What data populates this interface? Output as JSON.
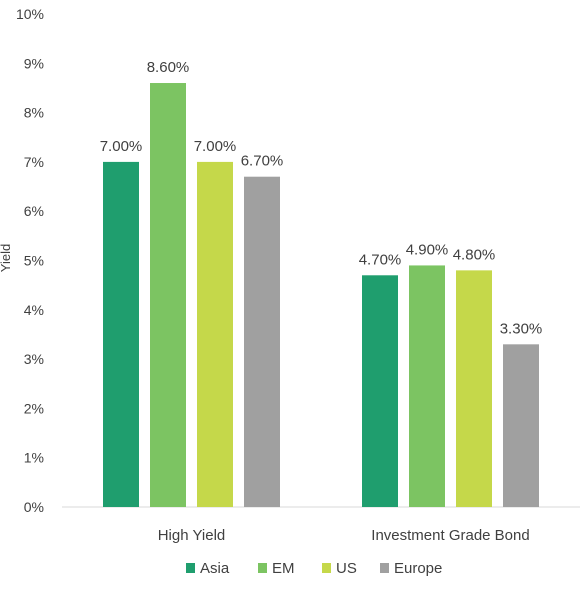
{
  "chart_data": {
    "type": "bar",
    "title": "",
    "xlabel": "",
    "ylabel": "Yield",
    "ylim": [
      0,
      10
    ],
    "y_ticks": [
      "0%",
      "1%",
      "2%",
      "3%",
      "4%",
      "5%",
      "6%",
      "7%",
      "8%",
      "9%",
      "10%"
    ],
    "categories": [
      "High Yield",
      "Investment Grade Bond"
    ],
    "series": [
      {
        "name": "Asia",
        "color": "#1f9e6e",
        "values": [
          7.0,
          4.7
        ],
        "labels": [
          "7.00%",
          "4.70%"
        ]
      },
      {
        "name": "EM",
        "color": "#7cc462",
        "values": [
          8.6,
          4.9
        ],
        "labels": [
          "8.60%",
          "4.90%"
        ]
      },
      {
        "name": "US",
        "color": "#c5d84a",
        "values": [
          7.0,
          4.8
        ],
        "labels": [
          "7.00%",
          "4.80%"
        ]
      },
      {
        "name": "Europe",
        "color": "#a0a0a0",
        "values": [
          6.7,
          3.3
        ],
        "labels": [
          "6.70%",
          "3.30%"
        ]
      }
    ],
    "grid": false,
    "legend": "bottom"
  }
}
